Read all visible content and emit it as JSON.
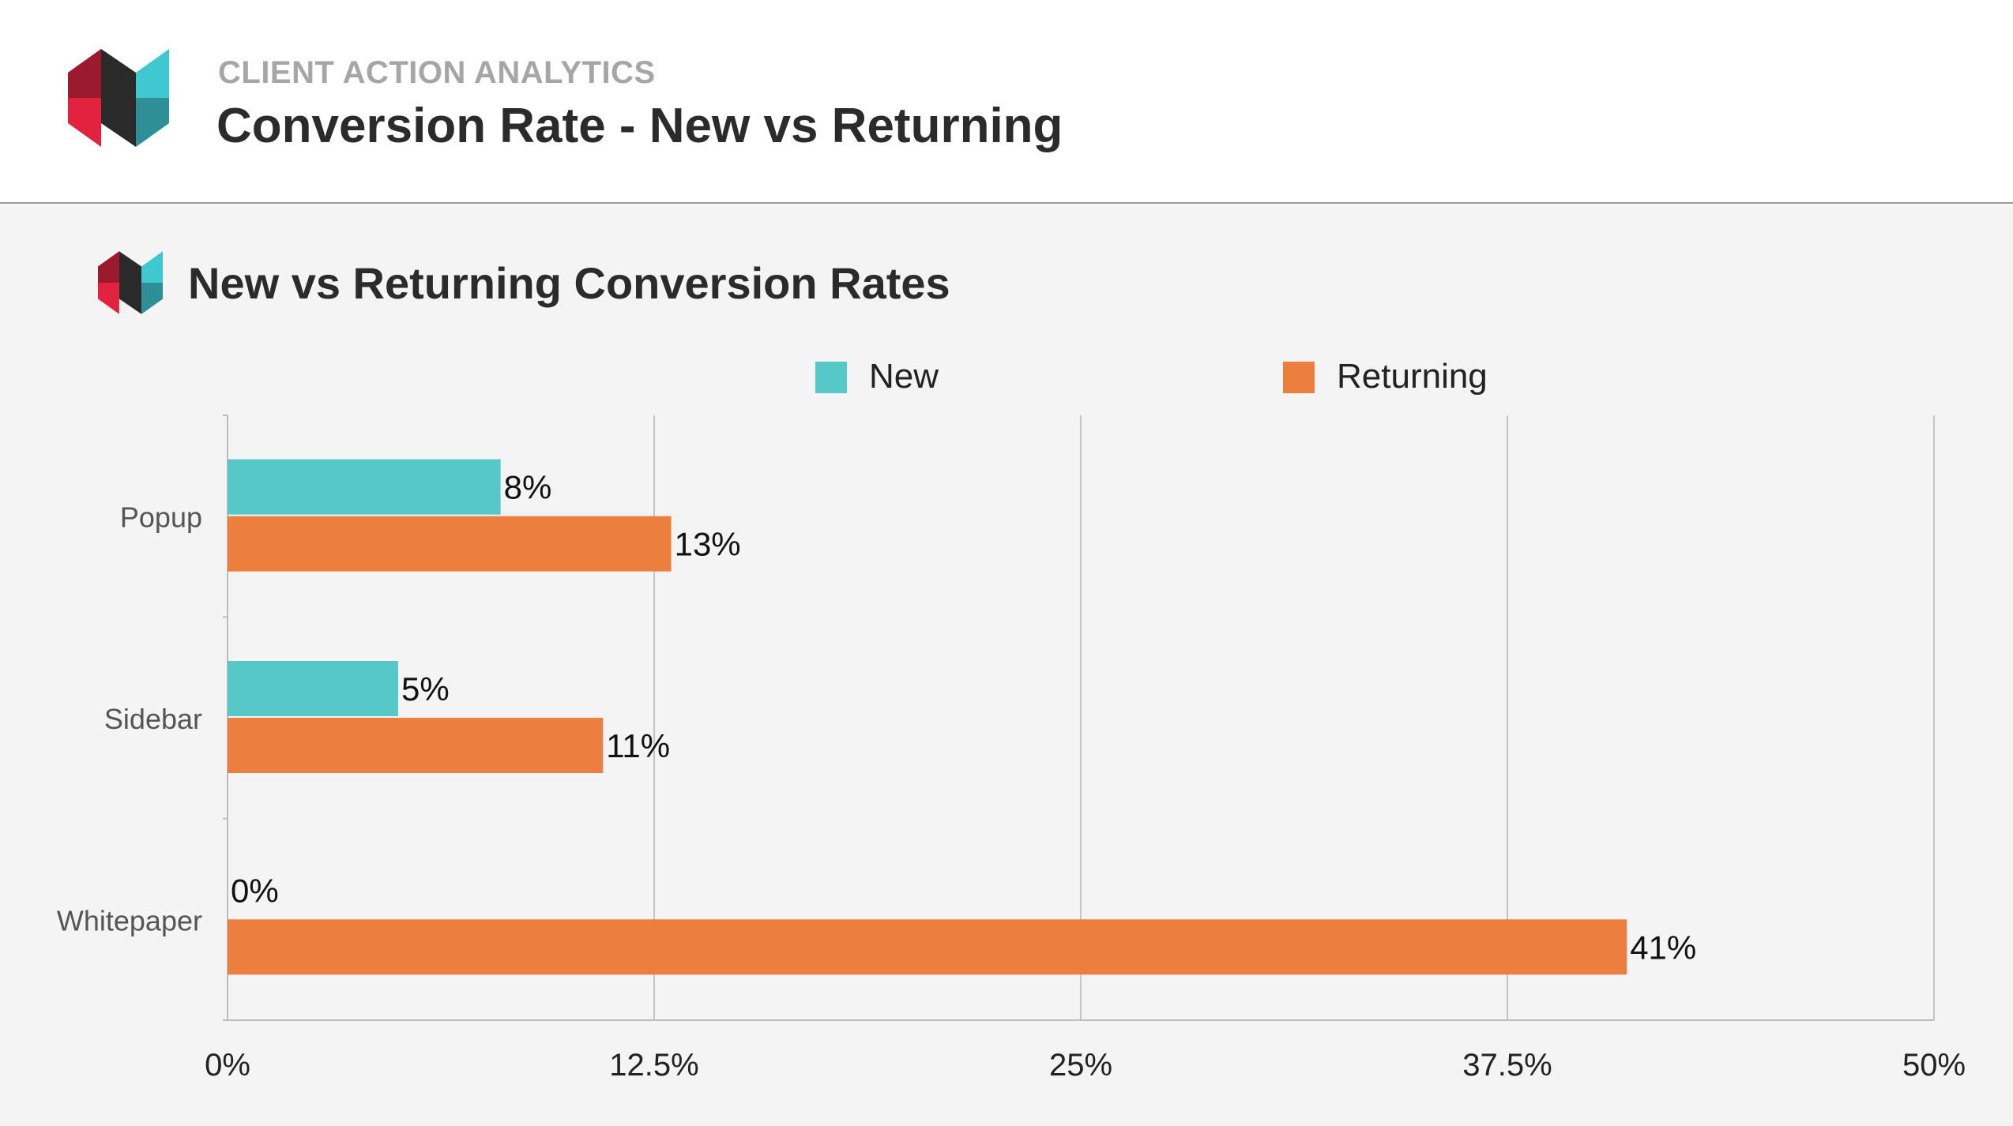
{
  "header": {
    "eyebrow": "CLIENT ACTION ANALYTICS",
    "title": "Conversion Rate - New vs Returning"
  },
  "brand_colors": {
    "red": "#e2223f",
    "dark_red": "#9b1a2e",
    "black": "#2a2a2a",
    "teal": "#3fc8cf",
    "dark_teal": "#2f8f96"
  },
  "chart_data": {
    "type": "bar",
    "orientation": "horizontal",
    "title": "New vs Returning Conversion Rates",
    "categories": [
      "Popup",
      "Sidebar",
      "Whitepaper"
    ],
    "series": [
      {
        "name": "New",
        "color": "#56c8c8",
        "values": [
          8,
          5,
          0
        ],
        "labels": [
          "8%",
          "5%",
          "0%"
        ]
      },
      {
        "name": "Returning",
        "color": "#ec7f3e",
        "values": [
          13,
          11,
          41
        ],
        "labels": [
          "13%",
          "11%",
          "41%"
        ]
      }
    ],
    "xlim": [
      0,
      50
    ],
    "x_ticks": [
      0,
      12.5,
      25,
      37.5,
      50
    ],
    "x_tick_labels": [
      "0%",
      "12.5%",
      "25%",
      "37.5%",
      "50%"
    ],
    "grid": true,
    "legend_position": "top"
  }
}
